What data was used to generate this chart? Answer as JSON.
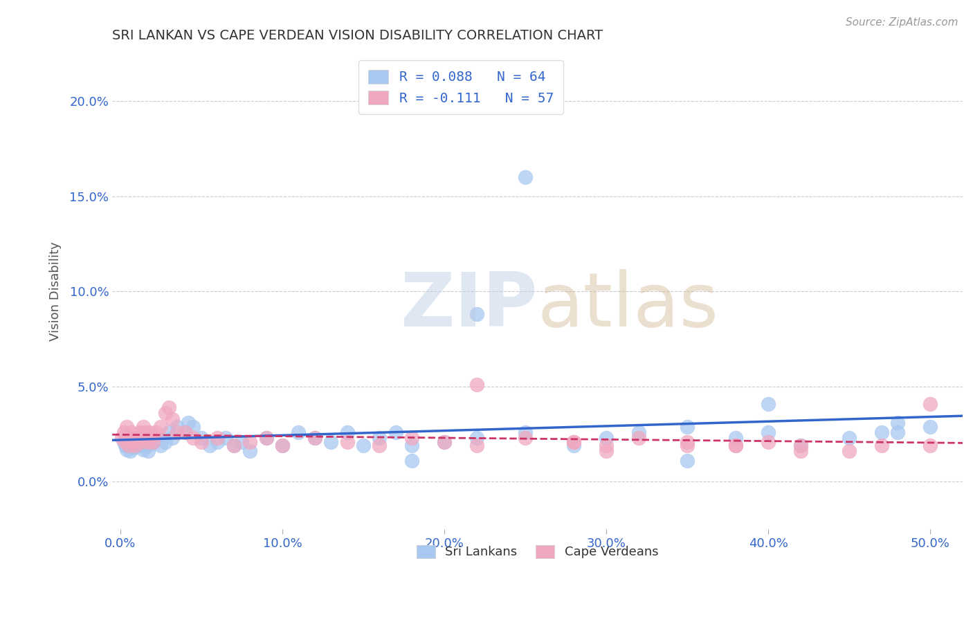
{
  "title": "SRI LANKAN VS CAPE VERDEAN VISION DISABILITY CORRELATION CHART",
  "source": "Source: ZipAtlas.com",
  "xlabel_ticks": [
    "0.0%",
    "10.0%",
    "20.0%",
    "30.0%",
    "40.0%",
    "50.0%"
  ],
  "xlabel_tick_vals": [
    0.0,
    0.1,
    0.2,
    0.3,
    0.4,
    0.5
  ],
  "ylabel": "Vision Disability",
  "ylabel_ticks": [
    "0.0%",
    "5.0%",
    "10.0%",
    "15.0%",
    "20.0%"
  ],
  "ylabel_tick_vals": [
    0.0,
    0.05,
    0.1,
    0.15,
    0.2
  ],
  "xlim": [
    -0.005,
    0.52
  ],
  "ylim": [
    -0.025,
    0.225
  ],
  "sri_lankans_R": 0.088,
  "sri_lankans_N": 64,
  "cape_verdeans_R": -0.111,
  "cape_verdeans_N": 57,
  "sri_lankans_color": "#a8c8f0",
  "cape_verdeans_color": "#f0a8c0",
  "sri_lankans_line_color": "#3366cc",
  "cape_verdeans_line_color": "#cc3366",
  "background_color": "#ffffff",
  "grid_color": "#cccccc",
  "title_color": "#333333",
  "axis_label_color": "#3366cc",
  "sri_lankans_x": [
    0.002,
    0.003,
    0.004,
    0.005,
    0.006,
    0.007,
    0.008,
    0.009,
    0.01,
    0.012,
    0.013,
    0.014,
    0.015,
    0.016,
    0.017,
    0.018,
    0.019,
    0.02,
    0.022,
    0.025,
    0.028,
    0.03,
    0.032,
    0.035,
    0.04,
    0.042,
    0.045,
    0.05,
    0.055,
    0.06,
    0.065,
    0.07,
    0.075,
    0.08,
    0.09,
    0.1,
    0.11,
    0.12,
    0.13,
    0.14,
    0.15,
    0.16,
    0.17,
    0.18,
    0.2,
    0.22,
    0.25,
    0.28,
    0.3,
    0.32,
    0.35,
    0.38,
    0.4,
    0.42,
    0.45,
    0.47,
    0.48,
    0.5,
    0.25,
    0.22,
    0.18,
    0.35,
    0.4,
    0.48
  ],
  "sri_lankans_y": [
    0.021,
    0.019,
    0.017,
    0.022,
    0.016,
    0.02,
    0.018,
    0.022,
    0.021,
    0.019,
    0.023,
    0.017,
    0.021,
    0.019,
    0.016,
    0.023,
    0.02,
    0.021,
    0.023,
    0.019,
    0.021,
    0.026,
    0.023,
    0.029,
    0.026,
    0.031,
    0.029,
    0.023,
    0.019,
    0.021,
    0.023,
    0.019,
    0.021,
    0.016,
    0.023,
    0.019,
    0.026,
    0.023,
    0.021,
    0.026,
    0.019,
    0.023,
    0.026,
    0.019,
    0.021,
    0.023,
    0.026,
    0.019,
    0.023,
    0.026,
    0.029,
    0.023,
    0.026,
    0.019,
    0.023,
    0.026,
    0.031,
    0.029,
    0.16,
    0.088,
    0.011,
    0.011,
    0.041,
    0.026
  ],
  "cape_verdeans_x": [
    0.001,
    0.002,
    0.003,
    0.004,
    0.005,
    0.006,
    0.007,
    0.008,
    0.009,
    0.01,
    0.012,
    0.013,
    0.014,
    0.015,
    0.016,
    0.017,
    0.018,
    0.019,
    0.02,
    0.022,
    0.025,
    0.028,
    0.03,
    0.032,
    0.035,
    0.04,
    0.045,
    0.05,
    0.06,
    0.07,
    0.08,
    0.09,
    0.1,
    0.12,
    0.14,
    0.16,
    0.18,
    0.2,
    0.22,
    0.25,
    0.28,
    0.3,
    0.32,
    0.35,
    0.38,
    0.4,
    0.42,
    0.45,
    0.47,
    0.5,
    0.22,
    0.28,
    0.35,
    0.42,
    0.5,
    0.3,
    0.38
  ],
  "cape_verdeans_y": [
    0.023,
    0.026,
    0.021,
    0.029,
    0.019,
    0.023,
    0.026,
    0.021,
    0.019,
    0.023,
    0.026,
    0.021,
    0.029,
    0.026,
    0.023,
    0.021,
    0.026,
    0.023,
    0.021,
    0.026,
    0.029,
    0.036,
    0.039,
    0.033,
    0.026,
    0.026,
    0.023,
    0.021,
    0.023,
    0.019,
    0.021,
    0.023,
    0.019,
    0.023,
    0.021,
    0.019,
    0.023,
    0.021,
    0.019,
    0.023,
    0.021,
    0.019,
    0.023,
    0.021,
    0.019,
    0.021,
    0.019,
    0.016,
    0.019,
    0.041,
    0.051,
    0.021,
    0.019,
    0.016,
    0.019,
    0.016,
    0.019
  ]
}
